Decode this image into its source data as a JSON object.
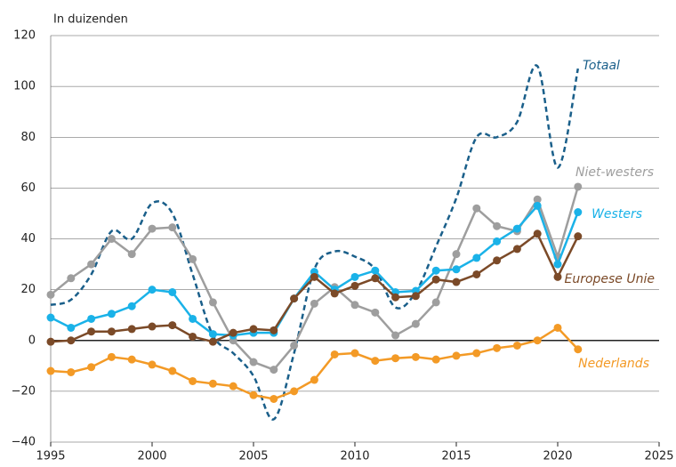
{
  "chart_data": {
    "type": "line",
    "y_label": "In duizenden",
    "x": [
      1995,
      1996,
      1997,
      1998,
      1999,
      2000,
      2001,
      2002,
      2003,
      2004,
      2005,
      2006,
      2007,
      2008,
      2009,
      2010,
      2011,
      2012,
      2013,
      2014,
      2015,
      2016,
      2017,
      2018,
      2019,
      2020,
      2021
    ],
    "series": [
      {
        "name": "Totaal",
        "color": "#1a5f8a",
        "dashed": true,
        "markers": false,
        "values": [
          14,
          16,
          26,
          43,
          40,
          54,
          50,
          26,
          2,
          -5,
          -14,
          -31,
          -5,
          28,
          35,
          33,
          28,
          13,
          19,
          37,
          56,
          80,
          80,
          86,
          108,
          68,
          107
        ]
      },
      {
        "name": "Niet-westers",
        "color": "#9e9e9e",
        "dashed": false,
        "markers": true,
        "values": [
          18,
          24.5,
          30,
          40,
          34,
          44,
          44.5,
          32,
          15,
          0,
          -8.5,
          -11.5,
          -2,
          14.5,
          21,
          14,
          11,
          2,
          6.5,
          15,
          34,
          52,
          45,
          43,
          55.5,
          33,
          60.5
        ]
      },
      {
        "name": "Westers",
        "color": "#1ab2e8",
        "dashed": false,
        "markers": true,
        "values": [
          9,
          5,
          8.5,
          10.5,
          13.5,
          20,
          19,
          8.5,
          2.5,
          2,
          3,
          3,
          16.5,
          27,
          20,
          25,
          27.5,
          19,
          19.5,
          27.5,
          28,
          32.5,
          39,
          44,
          53,
          30,
          50.5
        ]
      },
      {
        "name": "Europese Unie",
        "color": "#7b4a28",
        "dashed": false,
        "markers": true,
        "values": [
          -0.5,
          0,
          3.5,
          3.5,
          4.5,
          5.5,
          6,
          1.5,
          -0.5,
          3,
          4.5,
          4,
          16.5,
          25,
          18.5,
          21.5,
          24.5,
          17,
          17.5,
          24,
          23,
          26,
          31.5,
          36,
          42,
          25,
          41
        ]
      },
      {
        "name": "Nederlands",
        "color": "#f39a26",
        "dashed": false,
        "markers": true,
        "values": [
          -12,
          -12.5,
          -10.5,
          -6.5,
          -7.5,
          -9.5,
          -12,
          -16,
          -17,
          -18,
          -21.5,
          -23,
          -20,
          -15.5,
          -5.5,
          -5,
          -8,
          -7,
          -6.5,
          -7.5,
          -6,
          -5,
          -3,
          -2,
          0,
          5,
          -3.5
        ]
      }
    ],
    "xlim": [
      1995,
      2025
    ],
    "xticks": [
      1995,
      2000,
      2005,
      2010,
      2015,
      2020,
      2025
    ],
    "ylim": [
      -40,
      120
    ],
    "yticks": [
      {
        "value": -40,
        "label": "−40"
      },
      {
        "value": -20,
        "label": "−20"
      },
      0,
      20,
      40,
      60,
      80,
      100,
      120
    ],
    "grid": true
  }
}
